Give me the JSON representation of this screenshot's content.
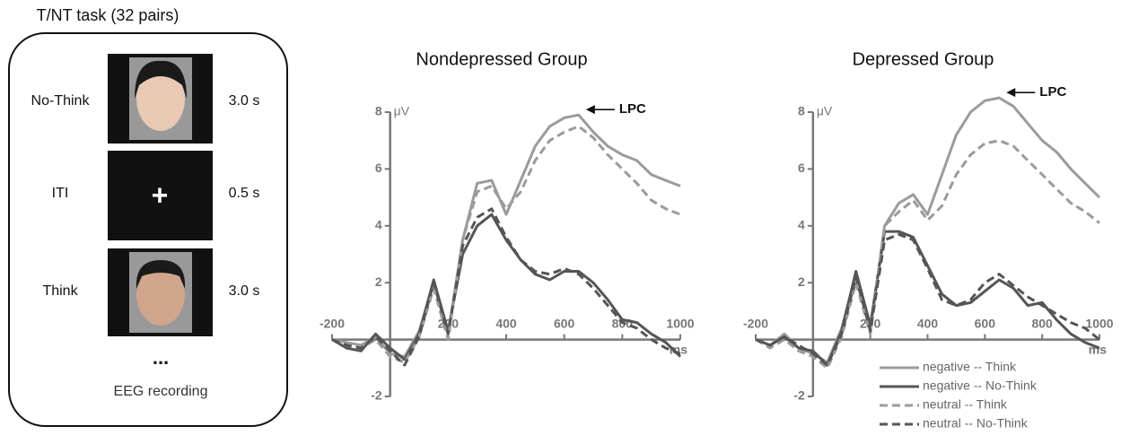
{
  "task": {
    "title": "T/NT task (32 pairs)",
    "trials": [
      {
        "label": "No-Think",
        "duration": "3.0 s"
      },
      {
        "label": "ITI",
        "duration": "0.5 s"
      },
      {
        "label": "Think",
        "duration": "3.0 s"
      }
    ],
    "fixation": "+",
    "ellipsis": "...",
    "caption": "EEG recording"
  },
  "chart_data": [
    {
      "type": "line",
      "title": "Nondepressed Group",
      "y_unit": "μV",
      "x_unit": "ms",
      "annotation": "LPC",
      "x": [
        -200,
        -150,
        -100,
        -50,
        0,
        50,
        100,
        150,
        200,
        250,
        300,
        350,
        400,
        450,
        500,
        550,
        600,
        650,
        700,
        750,
        800,
        850,
        900,
        950,
        1000
      ],
      "xlim": [
        -200,
        1000
      ],
      "xticks": [
        -200,
        200,
        400,
        600,
        800,
        1000
      ],
      "ylim": [
        -2,
        8
      ],
      "yticks": [
        -2,
        2,
        4,
        6,
        8
      ],
      "series": [
        {
          "color": "#9b9b9b",
          "dashed": false,
          "values": [
            0,
            -0.1,
            -0.2,
            0.1,
            -0.5,
            -0.6,
            0.3,
            2.0,
            0.2,
            3.5,
            5.5,
            5.6,
            4.4,
            5.6,
            6.8,
            7.5,
            7.8,
            7.9,
            7.3,
            6.8,
            6.5,
            6.3,
            5.8,
            5.6,
            5.4
          ]
        },
        {
          "color": "#555555",
          "dashed": false,
          "values": [
            0,
            -0.3,
            -0.4,
            0.2,
            -0.3,
            -0.7,
            0.2,
            2.1,
            0.3,
            3.0,
            4.0,
            4.4,
            3.5,
            2.8,
            2.3,
            2.1,
            2.4,
            2.4,
            2.0,
            1.4,
            0.7,
            0.6,
            0.2,
            -0.1,
            -0.6
          ]
        },
        {
          "color": "#9b9b9b",
          "dashed": true,
          "values": [
            0,
            -0.2,
            -0.3,
            0,
            -0.6,
            -0.8,
            0.1,
            1.8,
            0,
            3.5,
            5.2,
            5.4,
            4.6,
            5.2,
            6.3,
            7.0,
            7.3,
            7.5,
            7.1,
            6.5,
            6.0,
            5.5,
            4.9,
            4.6,
            4.4
          ]
        },
        {
          "color": "#555555",
          "dashed": true,
          "values": [
            0,
            -0.2,
            -0.3,
            0.1,
            -0.4,
            -0.9,
            0.1,
            2.0,
            0.2,
            3.3,
            4.3,
            4.6,
            3.6,
            2.8,
            2.4,
            2.3,
            2.5,
            2.3,
            1.8,
            1.2,
            0.6,
            0.4,
            0.0,
            -0.3,
            -0.5
          ]
        }
      ]
    },
    {
      "type": "line",
      "title": "Depressed Group",
      "y_unit": "μV",
      "x_unit": "ms",
      "annotation": "LPC",
      "legend": "bottom-right",
      "x": [
        -200,
        -150,
        -100,
        -50,
        0,
        50,
        100,
        150,
        200,
        250,
        300,
        350,
        400,
        450,
        500,
        550,
        600,
        650,
        700,
        750,
        800,
        850,
        900,
        950,
        1000
      ],
      "xlim": [
        -200,
        1000
      ],
      "xticks": [
        -200,
        200,
        400,
        600,
        800,
        1000
      ],
      "ylim": [
        -2,
        8
      ],
      "yticks": [
        -2,
        2,
        4,
        6,
        8
      ],
      "series": [
        {
          "name": "negative -- Think",
          "color": "#9b9b9b",
          "dashed": false,
          "values": [
            0,
            -0.2,
            0.2,
            -0.3,
            -0.5,
            -0.8,
            0.4,
            2.3,
            0.3,
            4.0,
            4.8,
            5.1,
            4.4,
            5.8,
            7.2,
            8.0,
            8.4,
            8.5,
            8.2,
            7.6,
            7.0,
            6.6,
            6.0,
            5.5,
            5.0
          ]
        },
        {
          "name": "negative -- No-Think",
          "color": "#555555",
          "dashed": false,
          "values": [
            0,
            -0.2,
            0.1,
            -0.3,
            -0.4,
            -0.9,
            0.3,
            2.4,
            0.5,
            3.8,
            3.8,
            3.6,
            2.6,
            1.6,
            1.2,
            1.3,
            1.7,
            2.1,
            1.8,
            1.2,
            1.3,
            0.7,
            0.2,
            -0.1,
            -0.3
          ]
        },
        {
          "name": "neutral -- Think",
          "color": "#9b9b9b",
          "dashed": true,
          "values": [
            0,
            -0.3,
            0,
            -0.4,
            -0.6,
            -1.0,
            0.1,
            2.0,
            0.2,
            4.0,
            4.5,
            4.9,
            4.2,
            4.7,
            5.8,
            6.5,
            6.9,
            7.0,
            6.8,
            6.3,
            5.8,
            5.3,
            4.8,
            4.5,
            4.1
          ]
        },
        {
          "name": "neutral -- No-Think",
          "color": "#555555",
          "dashed": true,
          "values": [
            0,
            -0.2,
            0.1,
            -0.2,
            -0.5,
            -0.9,
            0.2,
            2.2,
            0.3,
            3.5,
            3.7,
            3.5,
            2.5,
            1.4,
            1.2,
            1.4,
            2.0,
            2.3,
            1.9,
            1.5,
            1.2,
            0.9,
            0.6,
            0.4,
            0.0
          ]
        }
      ]
    }
  ]
}
